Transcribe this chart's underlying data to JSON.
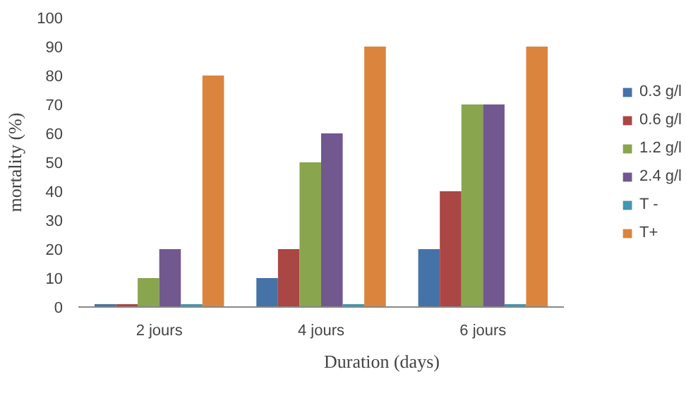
{
  "chart_data": {
    "type": "bar",
    "xlabel": "Duration (days)",
    "ylabel": "mortality (%)",
    "categories": [
      "2 jours",
      "4 jours",
      "6 jours"
    ],
    "series": [
      {
        "name": "0.3 g/l",
        "color": "#4572a7",
        "values": [
          1,
          10,
          20
        ]
      },
      {
        "name": "0.6 g/l",
        "color": "#aa4643",
        "values": [
          1,
          20,
          40
        ]
      },
      {
        "name": "1.2 g/l",
        "color": "#89a54e",
        "values": [
          10,
          50,
          70
        ]
      },
      {
        "name": "2.4 g/l",
        "color": "#71588f",
        "values": [
          20,
          60,
          70
        ]
      },
      {
        "name": "T -",
        "color": "#4198af",
        "values": [
          1,
          1,
          1
        ]
      },
      {
        "name": "T+",
        "color": "#db843d",
        "values": [
          80,
          90,
          90
        ]
      }
    ],
    "ylim": [
      0,
      100
    ],
    "yticks": [
      0,
      10,
      20,
      30,
      40,
      50,
      60,
      70,
      80,
      90,
      100
    ],
    "legend": "right"
  }
}
